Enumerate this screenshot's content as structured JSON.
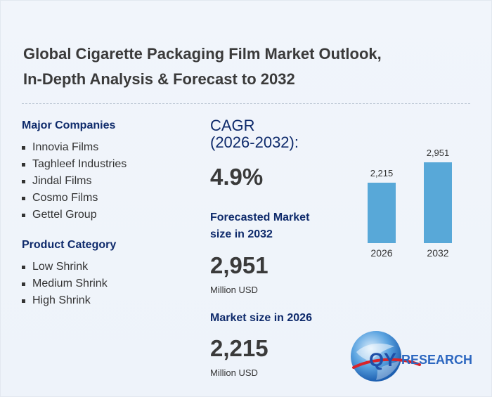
{
  "title_line1": "Global Cigarette Packaging Film Market Outlook,",
  "title_line2": "In-Depth Analysis & Forecast to 2032",
  "major_companies": {
    "heading": "Major Companies",
    "items": [
      "Innovia Films",
      "Taghleef Industries",
      "Jindal Films",
      "Cosmo Films",
      "Gettel Group"
    ]
  },
  "product_category": {
    "heading": "Product Category",
    "items": [
      "Low Shrink",
      "Medium Shrink",
      "High Shrink"
    ]
  },
  "cagr": {
    "label_line1": "CAGR",
    "label_line2": "(2026-2032):",
    "value": "4.9%"
  },
  "forecast": {
    "label_line1": "Forecasted Market",
    "label_line2": "size in 2032",
    "value": "2,951",
    "unit": "Million USD"
  },
  "market_2026": {
    "label": "Market size in 2026",
    "value": "2,215",
    "unit": "Million USD"
  },
  "chart_data": {
    "type": "bar",
    "categories": [
      "2026",
      "2032"
    ],
    "values": [
      2215,
      2951
    ],
    "value_labels": [
      "2,215",
      "2,951"
    ],
    "ylim": [
      0,
      3500
    ],
    "bar_color": "#58a8d8"
  },
  "logo": {
    "text_qy": "QY",
    "text_research": "RESEARCH",
    "qy_color": "#1f4fa8",
    "research_color": "#2c67c0"
  }
}
